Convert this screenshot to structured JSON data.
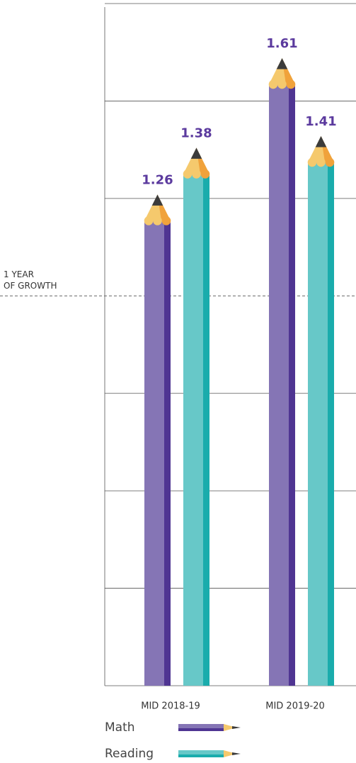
{
  "chart_data": {
    "type": "bar",
    "categories": [
      "MID 2018-19",
      "MID 2019-20"
    ],
    "series": [
      {
        "name": "Math",
        "color": "#8575b5",
        "side_color": "#4f3592",
        "values": [
          1.26,
          1.61
        ]
      },
      {
        "name": "Reading",
        "color": "#67c8c8",
        "side_color": "#1aacac",
        "values": [
          1.38,
          1.41
        ]
      }
    ],
    "ylim": [
      0,
      1.75
    ],
    "yticks": [
      0.25,
      0.5,
      0.75,
      1.25,
      1.5,
      1.75
    ],
    "grid": true,
    "reference_line": {
      "value": 1,
      "label_lines": [
        "1 YEAR",
        "OF GROWTH"
      ]
    },
    "value_label_color": "#5b3a9e"
  }
}
